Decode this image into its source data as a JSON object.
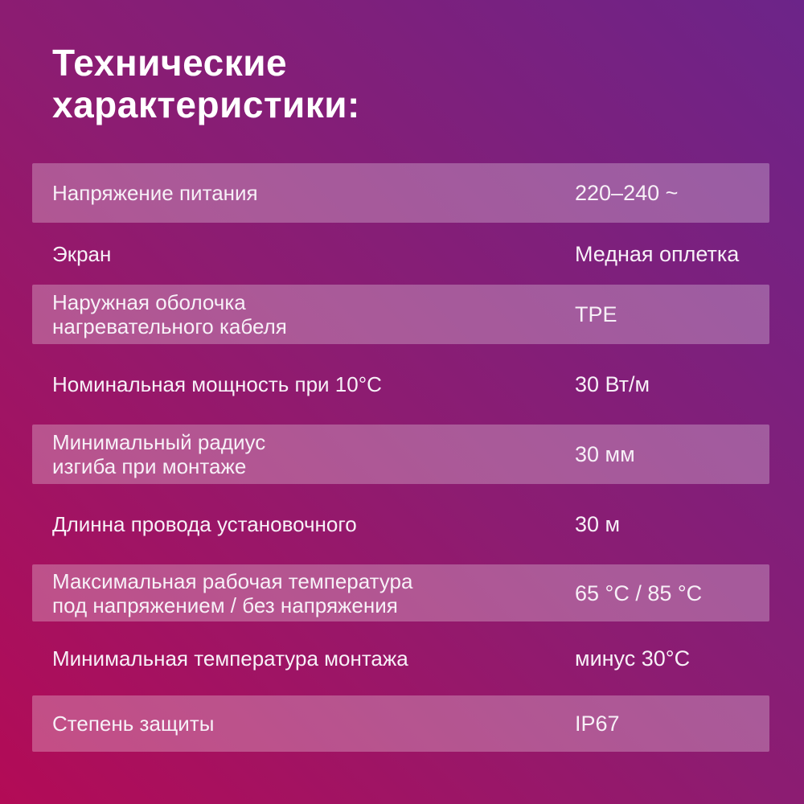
{
  "title": "Технические\nхарактеристики:",
  "colors": {
    "gradient_top_right": "#6c2489",
    "gradient_mid": "#8d1c71",
    "gradient_bottom_left": "#b30b56",
    "stripe_overlay": "rgba(255,255,255,0.27)",
    "text": "#f7f0f7",
    "title_text": "#ffffff"
  },
  "table": {
    "rows": [
      {
        "label": "Напряжение питания",
        "value": "220–240 ~",
        "striped": true
      },
      {
        "label": "Экран",
        "value": "Медная оплетка",
        "striped": false
      },
      {
        "label": "Наружная оболочка\nнагревательного кабеля",
        "value": "TPE",
        "striped": true
      },
      {
        "label": "Номинальная мощность при 10°C",
        "value": "30 Вт/м",
        "striped": false
      },
      {
        "label": "Минимальный радиус\nизгиба при монтаже",
        "value": "30 мм",
        "striped": true
      },
      {
        "label": "Длинна провода установочного",
        "value": "30 м",
        "striped": false
      },
      {
        "label": "Максимальная рабочая температура\nпод напряжением / без напряжения",
        "value": "65 °C / 85 °C",
        "striped": true
      },
      {
        "label": "Минимальная температура монтажа",
        "value": "минус 30°C",
        "striped": false
      },
      {
        "label": "Степень защиты",
        "value": "IP67",
        "striped": true
      }
    ]
  }
}
